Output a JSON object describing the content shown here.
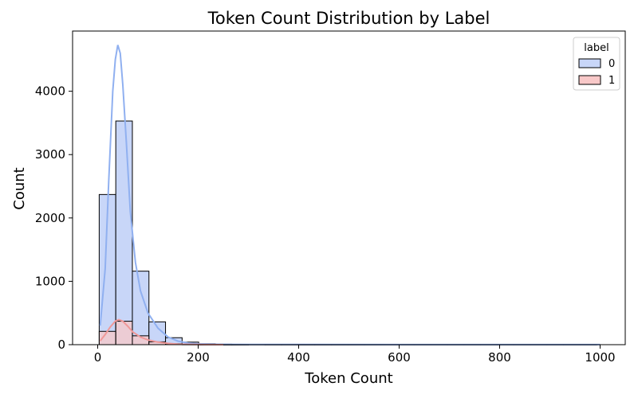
{
  "chart_data": {
    "type": "bar",
    "title": "Token Count Distribution by Label",
    "xlabel": "Token Count",
    "ylabel": "Count",
    "xlim": [
      -50,
      1050
    ],
    "ylim": [
      0,
      4950
    ],
    "xticks": [
      0,
      200,
      400,
      600,
      800,
      1000
    ],
    "yticks": [
      0,
      1000,
      2000,
      3000,
      4000
    ],
    "bin_width": 33,
    "bin_start": 3,
    "legend": {
      "title": "label",
      "position": "top-right"
    },
    "series": [
      {
        "name": "0",
        "color": "#c8d6f8",
        "kde_color": "#90b0f0",
        "values": [
          2370,
          3530,
          1160,
          360,
          110,
          40,
          15,
          8,
          5,
          3,
          2,
          2,
          1,
          1,
          1,
          1,
          1,
          1,
          1,
          1,
          1,
          1,
          1,
          1,
          1,
          1,
          1,
          1,
          1,
          1
        ],
        "kde": [
          [
            5,
            300
          ],
          [
            15,
            1200
          ],
          [
            22,
            2600
          ],
          [
            30,
            4000
          ],
          [
            35,
            4500
          ],
          [
            40,
            4730
          ],
          [
            45,
            4600
          ],
          [
            50,
            4100
          ],
          [
            57,
            3200
          ],
          [
            65,
            2100
          ],
          [
            75,
            1300
          ],
          [
            85,
            850
          ],
          [
            100,
            500
          ],
          [
            120,
            260
          ],
          [
            140,
            120
          ],
          [
            160,
            55
          ],
          [
            180,
            25
          ],
          [
            200,
            12
          ],
          [
            250,
            5
          ],
          [
            300,
            3
          ],
          [
            400,
            2
          ],
          [
            600,
            1
          ],
          [
            800,
            1
          ],
          [
            1000,
            1
          ]
        ]
      },
      {
        "name": "1",
        "color": "#f8c8c8",
        "kde_color": "#f09898",
        "values": [
          210,
          370,
          140,
          45,
          15,
          5,
          2,
          1,
          1,
          0,
          0,
          0,
          0,
          0,
          0,
          0,
          0,
          0,
          0,
          0,
          0,
          0,
          0,
          0,
          0,
          0,
          0,
          0,
          0,
          0
        ],
        "kde": [
          [
            5,
            60
          ],
          [
            15,
            160
          ],
          [
            25,
            280
          ],
          [
            35,
            370
          ],
          [
            42,
            395
          ],
          [
            50,
            370
          ],
          [
            60,
            290
          ],
          [
            70,
            200
          ],
          [
            85,
            120
          ],
          [
            100,
            75
          ],
          [
            120,
            40
          ],
          [
            140,
            20
          ],
          [
            160,
            8
          ],
          [
            200,
            2
          ],
          [
            250,
            0
          ]
        ]
      }
    ]
  }
}
